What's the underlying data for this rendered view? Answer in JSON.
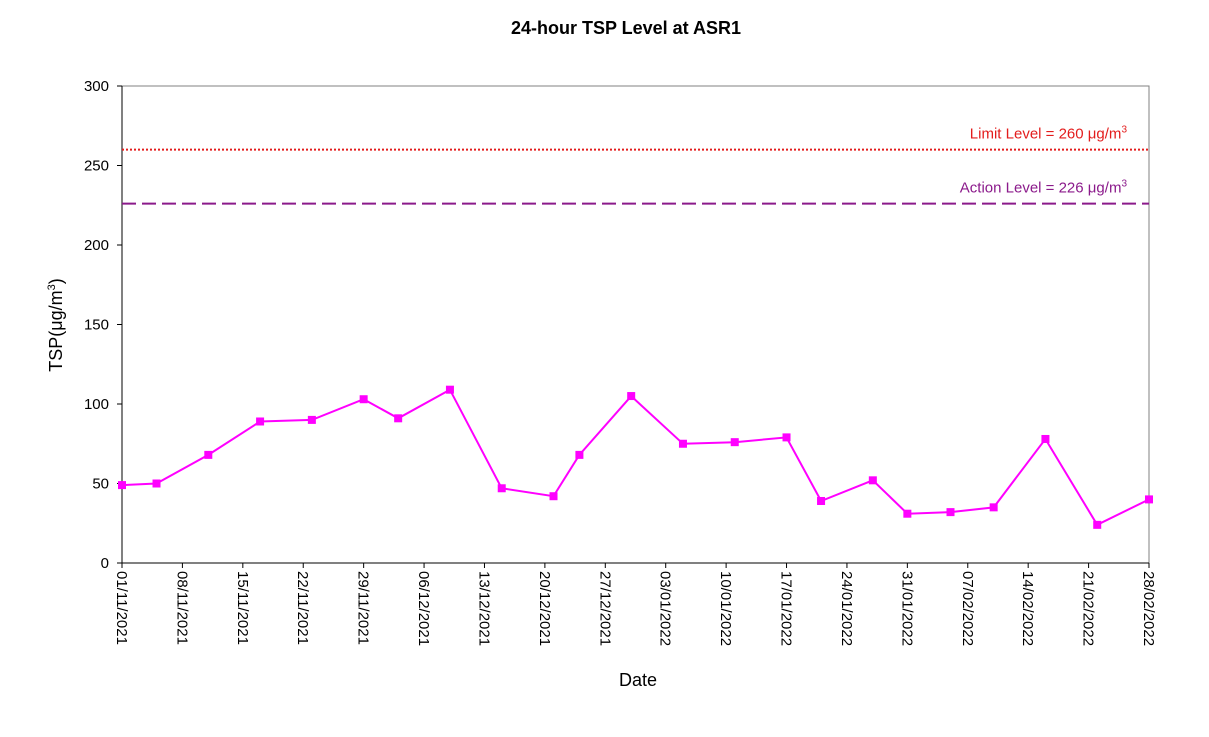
{
  "chart_data": {
    "type": "line",
    "title": "24-hour TSP Level at ASR1",
    "xlabel": "Date",
    "ylabel_main": "TSP(",
    "ylabel_unit": "μg/m",
    "ylabel_sup": "3",
    "ylabel_end": ")",
    "ylim": [
      0,
      300
    ],
    "y_ticks": [
      0,
      50,
      100,
      150,
      200,
      250,
      300
    ],
    "xlim": [
      "2021-11-01",
      "2022-02-28"
    ],
    "x_tick_labels": [
      "01/11/2021",
      "08/11/2021",
      "15/11/2021",
      "22/11/2021",
      "29/11/2021",
      "06/12/2021",
      "13/12/2021",
      "20/12/2021",
      "27/12/2021",
      "03/01/2022",
      "10/01/2022",
      "17/01/2022",
      "24/01/2022",
      "31/01/2022",
      "07/02/2022",
      "14/02/2022",
      "21/02/2022",
      "28/02/2022"
    ],
    "series": [
      {
        "color": "#ff00ff",
        "marker": "square",
        "points": [
          {
            "x": "2021-11-01",
            "y": 49
          },
          {
            "x": "2021-11-05",
            "y": 50
          },
          {
            "x": "2021-11-11",
            "y": 68
          },
          {
            "x": "2021-11-17",
            "y": 89
          },
          {
            "x": "2021-11-23",
            "y": 90
          },
          {
            "x": "2021-11-29",
            "y": 103
          },
          {
            "x": "2021-12-03",
            "y": 91
          },
          {
            "x": "2021-12-09",
            "y": 109
          },
          {
            "x": "2021-12-15",
            "y": 47
          },
          {
            "x": "2021-12-21",
            "y": 42
          },
          {
            "x": "2021-12-24",
            "y": 68
          },
          {
            "x": "2021-12-30",
            "y": 105
          },
          {
            "x": "2022-01-05",
            "y": 75
          },
          {
            "x": "2022-01-11",
            "y": 76
          },
          {
            "x": "2022-01-17",
            "y": 79
          },
          {
            "x": "2022-01-21",
            "y": 39
          },
          {
            "x": "2022-01-27",
            "y": 52
          },
          {
            "x": "2022-01-31",
            "y": 31
          },
          {
            "x": "2022-02-05",
            "y": 32
          },
          {
            "x": "2022-02-10",
            "y": 35
          },
          {
            "x": "2022-02-16",
            "y": 78
          },
          {
            "x": "2022-02-22",
            "y": 24
          },
          {
            "x": "2022-02-28",
            "y": 40
          }
        ]
      }
    ],
    "reference_lines": [
      {
        "label_main": "Limit Level = 260 ",
        "label_unit": "μg/m",
        "label_sup": "3",
        "value": 260,
        "color": "#e31c1c",
        "style": "dotted"
      },
      {
        "label_main": "Action Level = 226 ",
        "label_unit": "μg/m",
        "label_sup": "3",
        "value": 226,
        "color": "#8b1a8b",
        "style": "dashed"
      }
    ],
    "grid": false,
    "legend": "none"
  }
}
